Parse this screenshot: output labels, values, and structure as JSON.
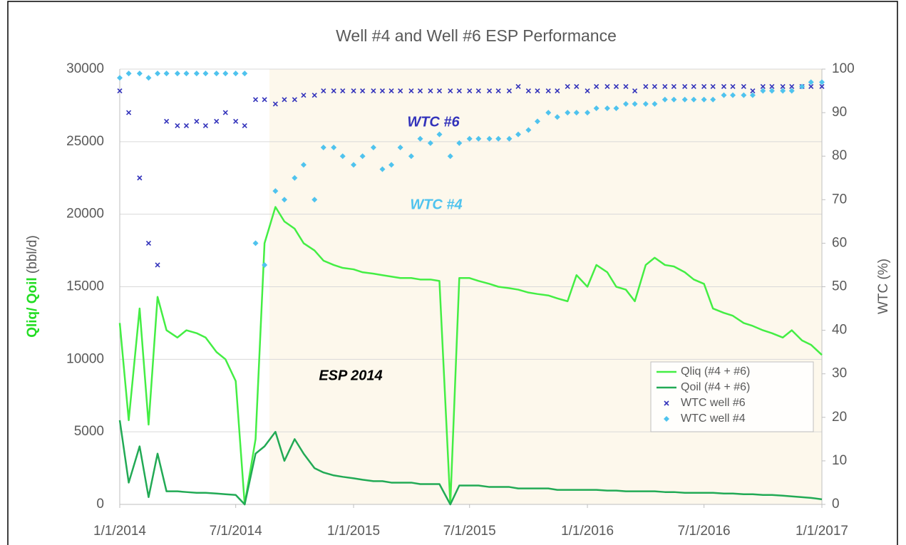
{
  "chart_data": {
    "type": "combo",
    "title": "Well #4 and Well #6 ESP Performance",
    "ylabel": [
      "Qliq/ Qoil",
      "(bbl/d)"
    ],
    "y2label": "WTC  (%)",
    "annotations": [
      "WTC #6",
      "WTC #4",
      "ESP 2014"
    ],
    "x": [
      "1/1/2014",
      "1/15/2014",
      "2/1/2014",
      "2/15/2014",
      "3/1/2014",
      "3/15/2014",
      "4/1/2014",
      "4/15/2014",
      "5/1/2014",
      "5/15/2014",
      "6/1/2014",
      "6/15/2014",
      "7/1/2014",
      "7/15/2014",
      "8/1/2014",
      "8/15/2014",
      "9/1/2014",
      "9/15/2014",
      "10/1/2014",
      "10/15/2014",
      "11/1/2014",
      "11/15/2014",
      "12/1/2014",
      "12/15/2014",
      "1/1/2015",
      "1/15/2015",
      "2/1/2015",
      "2/15/2015",
      "3/1/2015",
      "3/15/2015",
      "4/1/2015",
      "4/15/2015",
      "5/1/2015",
      "5/15/2015",
      "6/1/2015",
      "6/15/2015",
      "7/1/2015",
      "7/15/2015",
      "8/1/2015",
      "8/15/2015",
      "9/1/2015",
      "9/15/2015",
      "10/1/2015",
      "10/15/2015",
      "11/1/2015",
      "11/15/2015",
      "12/1/2015",
      "12/15/2015",
      "1/1/2016",
      "1/15/2016",
      "2/1/2016",
      "2/15/2016",
      "3/1/2016",
      "3/15/2016",
      "4/1/2016",
      "4/15/2016",
      "5/1/2016",
      "5/15/2016",
      "6/1/2016",
      "6/15/2016",
      "7/1/2016",
      "7/15/2016",
      "8/1/2016",
      "8/15/2016",
      "9/1/2016",
      "9/15/2016",
      "10/1/2016",
      "10/15/2016",
      "11/1/2016",
      "11/15/2016",
      "12/1/2016",
      "12/15/2016",
      "1/1/2017"
    ],
    "series": [
      {
        "name": "Qliq (#4 + #6)",
        "type": "line",
        "color": "#44ee44",
        "values": [
          12500,
          5800,
          13500,
          5500,
          14300,
          12000,
          11500,
          12000,
          11800,
          11500,
          10500,
          10000,
          8500,
          0,
          4500,
          18000,
          20500,
          19500,
          19000,
          18000,
          17500,
          16800,
          16500,
          16300,
          16200,
          16000,
          15900,
          15800,
          15700,
          15600,
          15600,
          15500,
          15500,
          15400,
          0,
          15600,
          15600,
          15400,
          15200,
          15000,
          14900,
          14800,
          14600,
          14500,
          14400,
          14200,
          14000,
          15800,
          15000,
          16500,
          16000,
          15000,
          14800,
          14000,
          16500,
          17000,
          16500,
          16400,
          16000,
          15500,
          15200,
          13500,
          13200,
          13000,
          12500,
          12300,
          12000,
          11800,
          11500,
          12000,
          11300,
          11000,
          10300
        ]
      },
      {
        "name": "Qoil (#4 + #6)",
        "type": "line",
        "color": "#22aa55",
        "values": [
          5800,
          1500,
          4000,
          500,
          3500,
          900,
          900,
          850,
          800,
          800,
          750,
          700,
          650,
          0,
          3500,
          4000,
          5000,
          3000,
          4500,
          3500,
          2500,
          2200,
          2000,
          1900,
          1800,
          1700,
          1600,
          1600,
          1500,
          1500,
          1500,
          1400,
          1400,
          1400,
          0,
          1300,
          1300,
          1300,
          1200,
          1200,
          1200,
          1100,
          1100,
          1100,
          1100,
          1000,
          1000,
          1000,
          1000,
          1000,
          950,
          950,
          900,
          900,
          900,
          900,
          850,
          850,
          800,
          800,
          800,
          800,
          750,
          750,
          700,
          700,
          650,
          650,
          600,
          550,
          500,
          450,
          350
        ]
      },
      {
        "name": "WTC well #6",
        "type": "scatter",
        "marker": "x",
        "axis": "y2",
        "color": "#3333bb",
        "values": [
          95,
          90,
          75,
          60,
          55,
          88,
          87,
          87,
          88,
          87,
          88,
          90,
          88,
          87,
          93,
          93,
          92,
          93,
          93,
          94,
          94,
          95,
          95,
          95,
          95,
          95,
          95,
          95,
          95,
          95,
          95,
          95,
          95,
          95,
          95,
          95,
          95,
          95,
          95,
          95,
          95,
          96,
          95,
          95,
          95,
          95,
          96,
          96,
          95,
          96,
          96,
          96,
          96,
          95,
          96,
          96,
          96,
          96,
          96,
          96,
          96,
          96,
          96,
          96,
          96,
          95,
          96,
          96,
          96,
          96,
          96,
          96,
          96
        ]
      },
      {
        "name": "WTC well #4",
        "type": "scatter",
        "marker": "diamond",
        "axis": "y2",
        "color": "#4fc3ee",
        "values": [
          98,
          99,
          99,
          98,
          99,
          99,
          99,
          99,
          99,
          99,
          99,
          99,
          99,
          99,
          60,
          55,
          72,
          70,
          75,
          78,
          70,
          82,
          82,
          80,
          78,
          80,
          82,
          77,
          78,
          82,
          80,
          84,
          83,
          85,
          80,
          83,
          84,
          84,
          84,
          84,
          84,
          85,
          86,
          88,
          90,
          89,
          90,
          90,
          90,
          91,
          91,
          91,
          92,
          92,
          92,
          92,
          93,
          93,
          93,
          93,
          93,
          93,
          94,
          94,
          94,
          94,
          95,
          95,
          95,
          95,
          96,
          97,
          97
        ]
      }
    ],
    "xlim": [
      "1/1/2014",
      "1/1/2017"
    ],
    "xticks": [
      "1/1/2014",
      "7/1/2014",
      "1/1/2015",
      "7/1/2015",
      "1/1/2016",
      "7/1/2016",
      "1/1/2017"
    ],
    "ylim": [
      0,
      30000
    ],
    "yticks": [
      0,
      5000,
      10000,
      15000,
      20000,
      25000,
      30000
    ],
    "y2lim": [
      0,
      100
    ],
    "y2ticks": [
      0,
      10,
      20,
      30,
      40,
      50,
      60,
      70,
      80,
      90,
      100
    ],
    "grid": true,
    "legend": "lower right"
  }
}
